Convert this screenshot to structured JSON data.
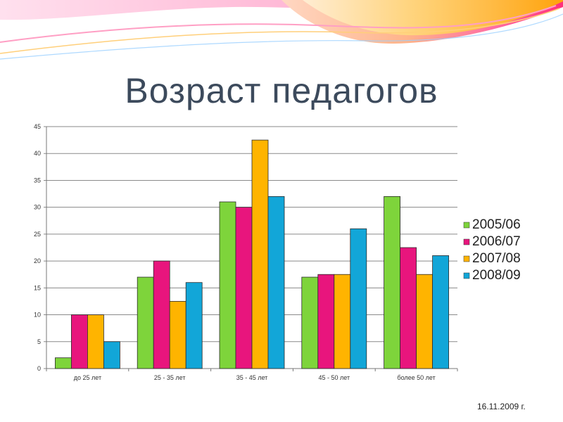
{
  "slide": {
    "title": "Возраст педагогов",
    "date": "16.11.2009 г."
  },
  "colors": {
    "title": "#3c4a5c",
    "grid": "#8a8a8a",
    "axis_text": "#333333"
  },
  "chart_data": {
    "type": "bar",
    "title": "",
    "xlabel": "",
    "ylabel": "",
    "categories": [
      "до 25 лет",
      "25 - 35 лет",
      "35 - 45 лет",
      "45 - 50 лет",
      "более 50 лет"
    ],
    "series": [
      {
        "name": "2005/06",
        "color": "#7ed43b",
        "values": [
          2,
          17,
          31,
          17,
          32
        ]
      },
      {
        "name": "2006/07",
        "color": "#e8157d",
        "values": [
          10,
          20,
          30,
          17.5,
          22.5
        ]
      },
      {
        "name": "2007/08",
        "color": "#ffb400",
        "values": [
          10,
          12.5,
          42.5,
          17.5,
          17.5
        ]
      },
      {
        "name": "2008/09",
        "color": "#12a6d8",
        "values": [
          5,
          16,
          32,
          26,
          21
        ]
      }
    ],
    "ylim": [
      0,
      45
    ],
    "yticks": [
      "0",
      "5",
      "10",
      "15",
      "20",
      "25",
      "30",
      "35",
      "40",
      "45"
    ],
    "grid": true,
    "legend_position": "right"
  }
}
